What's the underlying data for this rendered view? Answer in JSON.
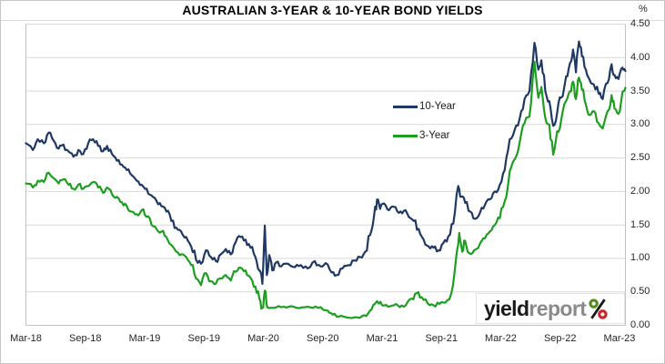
{
  "chart_data": {
    "type": "line",
    "title": "AUSTRALIAN 3-YEAR & 10-YEAR BOND YIELDS",
    "y_unit": "%",
    "ylim": [
      0,
      4.5
    ],
    "grid": "horizontal",
    "legend_position": "inside-center",
    "x_domain_months": [
      0,
      60.6
    ],
    "x_note": "x values are month offsets from Mar-2018; y values are yield percent",
    "yticks": [
      {
        "v": 4.5,
        "label": "4.50"
      },
      {
        "v": 4.0,
        "label": "4.00"
      },
      {
        "v": 3.5,
        "label": "3.50"
      },
      {
        "v": 3.0,
        "label": "3.00"
      },
      {
        "v": 2.5,
        "label": "2.50"
      },
      {
        "v": 2.0,
        "label": "2.00"
      },
      {
        "v": 1.5,
        "label": "1.50"
      },
      {
        "v": 1.0,
        "label": "1.00"
      },
      {
        "v": 0.5,
        "label": "0.50"
      },
      {
        "v": 0.0,
        "label": "0.00"
      }
    ],
    "xticks": [
      {
        "m": 0,
        "label": "Mar-18"
      },
      {
        "m": 6,
        "label": "Sep-18"
      },
      {
        "m": 12,
        "label": "Mar-19"
      },
      {
        "m": 18,
        "label": "Sep-19"
      },
      {
        "m": 24,
        "label": "Mar-20"
      },
      {
        "m": 30,
        "label": "Sep-20"
      },
      {
        "m": 36,
        "label": "Mar-21"
      },
      {
        "m": 42,
        "label": "Sep-21"
      },
      {
        "m": 48,
        "label": "Mar-22"
      },
      {
        "m": 54,
        "label": "Sep-22"
      },
      {
        "m": 60,
        "label": "Mar-23"
      }
    ],
    "series": [
      {
        "name": "10-Year",
        "color": "#1f3864",
        "points": [
          [
            0,
            2.72
          ],
          [
            0.7,
            2.62
          ],
          [
            1.2,
            2.78
          ],
          [
            1.8,
            2.72
          ],
          [
            2.3,
            2.88
          ],
          [
            2.8,
            2.76
          ],
          [
            3.3,
            2.64
          ],
          [
            3.8,
            2.7
          ],
          [
            4.3,
            2.6
          ],
          [
            4.8,
            2.52
          ],
          [
            5.3,
            2.62
          ],
          [
            5.8,
            2.56
          ],
          [
            6.3,
            2.72
          ],
          [
            6.8,
            2.78
          ],
          [
            7.3,
            2.68
          ],
          [
            7.8,
            2.6
          ],
          [
            8.2,
            2.68
          ],
          [
            8.7,
            2.56
          ],
          [
            9.2,
            2.46
          ],
          [
            9.7,
            2.4
          ],
          [
            10.2,
            2.32
          ],
          [
            10.7,
            2.24
          ],
          [
            11.2,
            2.16
          ],
          [
            11.7,
            2.1
          ],
          [
            12.2,
            2.04
          ],
          [
            12.7,
            1.94
          ],
          [
            13.2,
            1.86
          ],
          [
            13.7,
            1.78
          ],
          [
            14.2,
            1.7
          ],
          [
            14.7,
            1.56
          ],
          [
            15.2,
            1.46
          ],
          [
            15.7,
            1.4
          ],
          [
            16.2,
            1.32
          ],
          [
            16.7,
            1.18
          ],
          [
            17.2,
            0.98
          ],
          [
            17.7,
            0.92
          ],
          [
            18.2,
            1.12
          ],
          [
            18.7,
            1.02
          ],
          [
            19.2,
            0.96
          ],
          [
            19.7,
            1.06
          ],
          [
            20.2,
            1.14
          ],
          [
            20.7,
            1.06
          ],
          [
            21.2,
            1.24
          ],
          [
            21.7,
            1.32
          ],
          [
            22.2,
            1.28
          ],
          [
            22.7,
            1.16
          ],
          [
            23.2,
            1.02
          ],
          [
            23.6,
            0.82
          ],
          [
            23.9,
            0.62
          ],
          [
            24.15,
            1.49
          ],
          [
            24.35,
            0.75
          ],
          [
            24.6,
            1.05
          ],
          [
            24.9,
            0.82
          ],
          [
            25.3,
            0.94
          ],
          [
            25.8,
            0.88
          ],
          [
            26.5,
            0.92
          ],
          [
            27.2,
            0.87
          ],
          [
            27.8,
            0.9
          ],
          [
            28.5,
            0.85
          ],
          [
            29.2,
            0.96
          ],
          [
            29.8,
            0.88
          ],
          [
            30.3,
            0.93
          ],
          [
            30.9,
            0.79
          ],
          [
            31.4,
            0.75
          ],
          [
            32,
            0.85
          ],
          [
            32.6,
            0.9
          ],
          [
            33.2,
            0.97
          ],
          [
            33.8,
            1.02
          ],
          [
            34.3,
            1.1
          ],
          [
            34.8,
            1.35
          ],
          [
            35.2,
            1.65
          ],
          [
            35.5,
            1.88
          ],
          [
            35.8,
            1.74
          ],
          [
            36.2,
            1.82
          ],
          [
            36.7,
            1.72
          ],
          [
            37.2,
            1.77
          ],
          [
            37.7,
            1.68
          ],
          [
            38.2,
            1.71
          ],
          [
            38.7,
            1.62
          ],
          [
            39.2,
            1.56
          ],
          [
            39.7,
            1.44
          ],
          [
            40.2,
            1.28
          ],
          [
            40.7,
            1.18
          ],
          [
            41.2,
            1.16
          ],
          [
            41.7,
            1.12
          ],
          [
            42.2,
            1.23
          ],
          [
            42.7,
            1.33
          ],
          [
            43.2,
            1.52
          ],
          [
            43.7,
            2.08
          ],
          [
            44,
            1.92
          ],
          [
            44.4,
            1.83
          ],
          [
            44.9,
            1.7
          ],
          [
            45.4,
            1.59
          ],
          [
            45.9,
            1.68
          ],
          [
            46.4,
            1.8
          ],
          [
            46.9,
            1.88
          ],
          [
            47.4,
            2.0
          ],
          [
            47.9,
            2.1
          ],
          [
            48.4,
            2.32
          ],
          [
            48.9,
            2.78
          ],
          [
            49.4,
            2.92
          ],
          [
            49.9,
            3.08
          ],
          [
            50.4,
            3.38
          ],
          [
            50.9,
            3.5
          ],
          [
            51.4,
            4.22
          ],
          [
            51.8,
            3.82
          ],
          [
            52.1,
            3.96
          ],
          [
            52.5,
            3.5
          ],
          [
            52.9,
            3.35
          ],
          [
            53.3,
            2.98
          ],
          [
            53.7,
            3.18
          ],
          [
            54.1,
            3.4
          ],
          [
            54.6,
            3.72
          ],
          [
            55,
            3.92
          ],
          [
            55.3,
            4.12
          ],
          [
            55.6,
            3.78
          ],
          [
            55.9,
            4.24
          ],
          [
            56.2,
            4.02
          ],
          [
            56.6,
            3.82
          ],
          [
            57,
            3.66
          ],
          [
            57.4,
            3.6
          ],
          [
            57.9,
            3.46
          ],
          [
            58.3,
            3.38
          ],
          [
            58.8,
            3.62
          ],
          [
            59.2,
            3.9
          ],
          [
            59.5,
            3.74
          ],
          [
            59.9,
            3.68
          ],
          [
            60.3,
            3.85
          ],
          [
            60.6,
            3.8
          ]
        ]
      },
      {
        "name": "3-Year",
        "color": "#1e9e20",
        "points": [
          [
            0,
            2.12
          ],
          [
            0.7,
            2.06
          ],
          [
            1.2,
            2.16
          ],
          [
            1.8,
            2.14
          ],
          [
            2.3,
            2.28
          ],
          [
            2.8,
            2.2
          ],
          [
            3.3,
            2.12
          ],
          [
            3.8,
            2.18
          ],
          [
            4.3,
            2.1
          ],
          [
            4.8,
            2.04
          ],
          [
            5.3,
            2.1
          ],
          [
            5.8,
            2.04
          ],
          [
            6.3,
            2.08
          ],
          [
            6.8,
            2.14
          ],
          [
            7.3,
            2.06
          ],
          [
            7.8,
            1.98
          ],
          [
            8.2,
            2.06
          ],
          [
            8.7,
            1.96
          ],
          [
            9.2,
            1.92
          ],
          [
            9.7,
            1.84
          ],
          [
            10.2,
            1.78
          ],
          [
            10.7,
            1.7
          ],
          [
            11.2,
            1.66
          ],
          [
            11.7,
            1.72
          ],
          [
            12.2,
            1.62
          ],
          [
            12.7,
            1.5
          ],
          [
            13.2,
            1.44
          ],
          [
            13.7,
            1.4
          ],
          [
            14.2,
            1.32
          ],
          [
            14.7,
            1.2
          ],
          [
            15.2,
            1.1
          ],
          [
            15.7,
            1.06
          ],
          [
            16.2,
            1.02
          ],
          [
            16.7,
            0.9
          ],
          [
            17.2,
            0.7
          ],
          [
            17.7,
            0.6
          ],
          [
            18.2,
            0.78
          ],
          [
            18.7,
            0.66
          ],
          [
            19.2,
            0.62
          ],
          [
            19.7,
            0.7
          ],
          [
            20.2,
            0.75
          ],
          [
            20.7,
            0.67
          ],
          [
            21.2,
            0.8
          ],
          [
            21.7,
            0.86
          ],
          [
            22.2,
            0.82
          ],
          [
            22.7,
            0.71
          ],
          [
            23.2,
            0.58
          ],
          [
            23.6,
            0.4
          ],
          [
            23.9,
            0.26
          ],
          [
            24.15,
            0.52
          ],
          [
            24.4,
            0.27
          ],
          [
            25,
            0.26
          ],
          [
            25.8,
            0.27
          ],
          [
            26.6,
            0.28
          ],
          [
            27.4,
            0.26
          ],
          [
            28.2,
            0.27
          ],
          [
            29,
            0.26
          ],
          [
            29.8,
            0.27
          ],
          [
            30.5,
            0.22
          ],
          [
            31,
            0.16
          ],
          [
            31.6,
            0.13
          ],
          [
            32.4,
            0.12
          ],
          [
            33.2,
            0.12
          ],
          [
            34,
            0.14
          ],
          [
            34.6,
            0.18
          ],
          [
            35.1,
            0.3
          ],
          [
            35.5,
            0.36
          ],
          [
            36,
            0.3
          ],
          [
            36.6,
            0.28
          ],
          [
            37.2,
            0.3
          ],
          [
            37.8,
            0.27
          ],
          [
            38.4,
            0.3
          ],
          [
            39,
            0.4
          ],
          [
            39.5,
            0.48
          ],
          [
            40,
            0.42
          ],
          [
            40.6,
            0.33
          ],
          [
            41.2,
            0.3
          ],
          [
            41.8,
            0.32
          ],
          [
            42.4,
            0.34
          ],
          [
            43,
            0.48
          ],
          [
            43.5,
            1.02
          ],
          [
            43.8,
            1.38
          ],
          [
            44.1,
            1.1
          ],
          [
            44.4,
            1.26
          ],
          [
            44.8,
            1.08
          ],
          [
            45.3,
            1.12
          ],
          [
            45.9,
            1.22
          ],
          [
            46.4,
            1.3
          ],
          [
            46.9,
            1.4
          ],
          [
            47.4,
            1.5
          ],
          [
            47.9,
            1.6
          ],
          [
            48.4,
            1.85
          ],
          [
            48.9,
            2.3
          ],
          [
            49.4,
            2.48
          ],
          [
            49.9,
            2.72
          ],
          [
            50.4,
            3.02
          ],
          [
            50.9,
            3.12
          ],
          [
            51.4,
            3.94
          ],
          [
            51.8,
            3.4
          ],
          [
            52.1,
            3.56
          ],
          [
            52.5,
            3.1
          ],
          [
            52.9,
            3.0
          ],
          [
            53.3,
            2.55
          ],
          [
            53.7,
            2.9
          ],
          [
            54.1,
            3.06
          ],
          [
            54.6,
            3.35
          ],
          [
            55,
            3.5
          ],
          [
            55.3,
            3.64
          ],
          [
            55.6,
            3.38
          ],
          [
            55.9,
            3.7
          ],
          [
            56.2,
            3.52
          ],
          [
            56.6,
            3.3
          ],
          [
            57,
            3.14
          ],
          [
            57.4,
            3.2
          ],
          [
            57.9,
            3.02
          ],
          [
            58.3,
            2.94
          ],
          [
            58.8,
            3.2
          ],
          [
            59.2,
            3.44
          ],
          [
            59.5,
            3.24
          ],
          [
            59.9,
            3.16
          ],
          [
            60.3,
            3.48
          ],
          [
            60.6,
            3.55
          ]
        ]
      }
    ]
  },
  "branding": {
    "word1": "yield",
    "word2": "report",
    "word1_color": "#1a1a1a",
    "word2_color": "#8a8a8a",
    "percent_green": "#4e8c1f",
    "percent_red": "#cb2128"
  },
  "colors": {
    "gridline": "#d9d9d9",
    "axis": "#c2c2c2",
    "label": "#262626",
    "frame_border": "#c6c6c6"
  }
}
